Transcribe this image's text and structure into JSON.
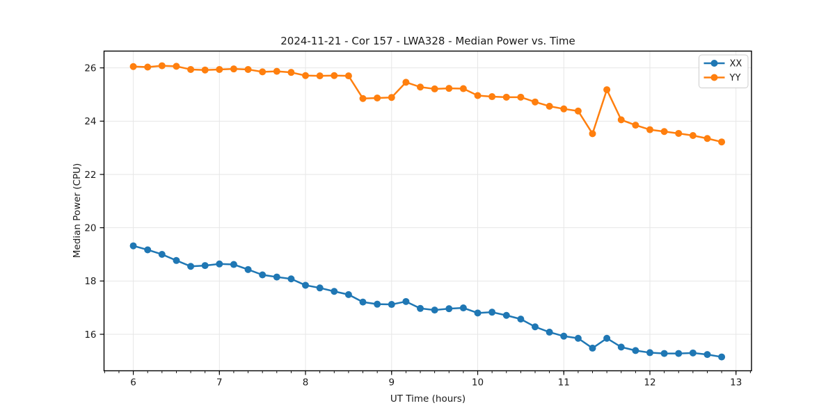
{
  "figure": {
    "background": "#ffffff",
    "spine_color": "#000000",
    "text_color": "#1a1a1a"
  },
  "chart_data": {
    "type": "line",
    "title": "2024-11-21 - Cor 157 - LWA328 - Median Power vs. Time",
    "xlabel": "UT Time (hours)",
    "ylabel": "Median Power (CPU)",
    "xlim": [
      5.66,
      13.18
    ],
    "ylim": [
      14.63,
      26.63
    ],
    "xticks": [
      6,
      7,
      8,
      9,
      10,
      11,
      12,
      13
    ],
    "yticks": [
      16,
      18,
      20,
      22,
      24,
      26
    ],
    "x_minor_step": 0.1666667,
    "grid": true,
    "grid_color": "#e6e6e6",
    "legend": {
      "position": "upper right"
    },
    "x": [
      6.0,
      6.1667,
      6.3333,
      6.5,
      6.6667,
      6.8333,
      7.0,
      7.1667,
      7.3333,
      7.5,
      7.6667,
      7.8333,
      8.0,
      8.1667,
      8.3333,
      8.5,
      8.6667,
      8.8333,
      9.0,
      9.1667,
      9.3333,
      9.5,
      9.6667,
      9.8333,
      10.0,
      10.1667,
      10.3333,
      10.5,
      10.6667,
      10.8333,
      11.0,
      11.1667,
      11.3333,
      11.5,
      11.6667,
      11.8333,
      12.0,
      12.1667,
      12.3333,
      12.5,
      12.6667,
      12.8333
    ],
    "series": [
      {
        "name": "XX",
        "color": "#1f77b4",
        "values": [
          19.32,
          19.17,
          19.0,
          18.77,
          18.55,
          18.58,
          18.64,
          18.62,
          18.43,
          18.23,
          18.15,
          18.08,
          17.84,
          17.74,
          17.61,
          17.49,
          17.21,
          17.13,
          17.12,
          17.23,
          16.97,
          16.91,
          16.96,
          16.99,
          16.8,
          16.83,
          16.71,
          16.57,
          16.28,
          16.08,
          15.93,
          15.85,
          15.48,
          15.85,
          15.52,
          15.39,
          15.31,
          15.28,
          15.28,
          15.3,
          15.24,
          15.15
        ]
      },
      {
        "name": "YY",
        "color": "#ff7f0e",
        "values": [
          26.05,
          26.03,
          26.08,
          26.06,
          25.94,
          25.92,
          25.94,
          25.96,
          25.94,
          25.85,
          25.87,
          25.83,
          25.71,
          25.7,
          25.71,
          25.7,
          24.85,
          24.87,
          24.89,
          25.46,
          25.28,
          25.21,
          25.23,
          25.22,
          24.96,
          24.92,
          24.9,
          24.9,
          24.72,
          24.56,
          24.46,
          24.38,
          23.53,
          25.18,
          24.05,
          23.85,
          23.68,
          23.61,
          23.54,
          23.46,
          23.35,
          23.22
        ]
      }
    ]
  }
}
